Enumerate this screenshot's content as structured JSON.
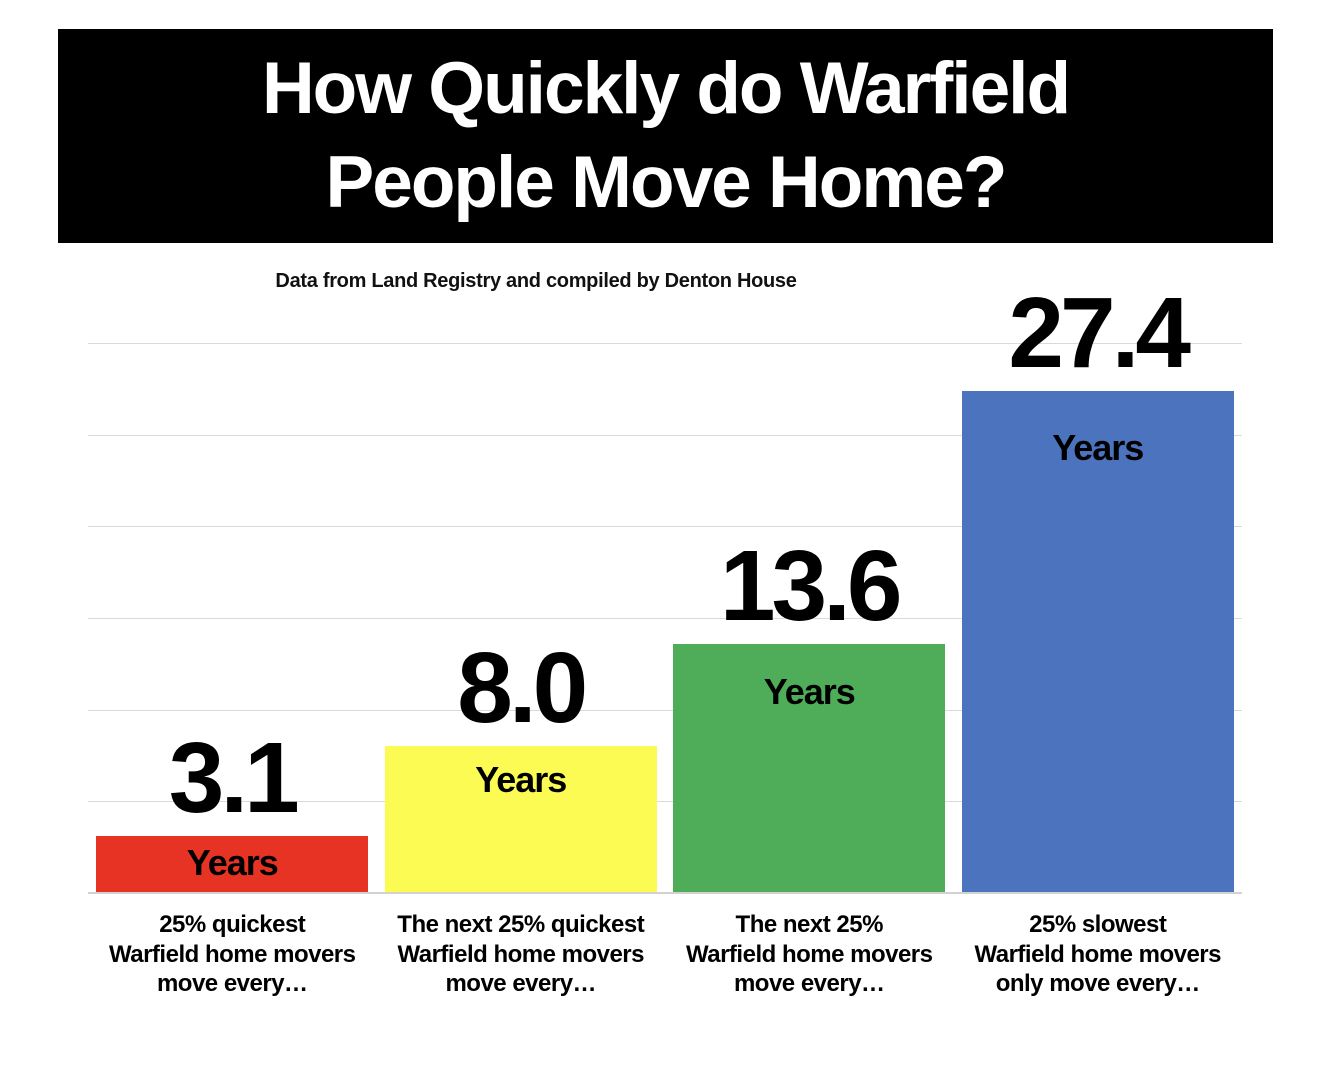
{
  "header": {
    "title": "How Quickly do Warfield\nPeople Move Home?"
  },
  "subtitle": "Data from Land Registry and compiled by Denton House",
  "chart_data": {
    "type": "bar",
    "title": "How Quickly do Warfield People Move Home?",
    "subtitle": "Data from Land Registry and compiled by Denton House",
    "categories": [
      "25% quickest\nWarfield home movers\nmove every…",
      "The next 25% quickest\nWarfield home movers\nmove every…",
      "The next 25%\nWarfield home movers\nmove every…",
      "25% slowest\nWarfield home movers\nonly move every…"
    ],
    "values": [
      3.1,
      8.0,
      13.6,
      27.4
    ],
    "value_labels": [
      "3.1",
      "8.0",
      "13.6",
      "27.4"
    ],
    "bar_inner_label": "Years",
    "bar_colors": [
      "#E63323",
      "#FBFB54",
      "#4FAD5A",
      "#4C73BD"
    ],
    "xlabel": "",
    "ylabel": "",
    "ylim": [
      0,
      30
    ],
    "gridline_interval": 5,
    "grid": true,
    "legend": false,
    "axis_tick_labels_visible": false,
    "title_bar_background": "#000000",
    "title_color": "#FFFFFF",
    "gridline_color": "#DADADA"
  }
}
